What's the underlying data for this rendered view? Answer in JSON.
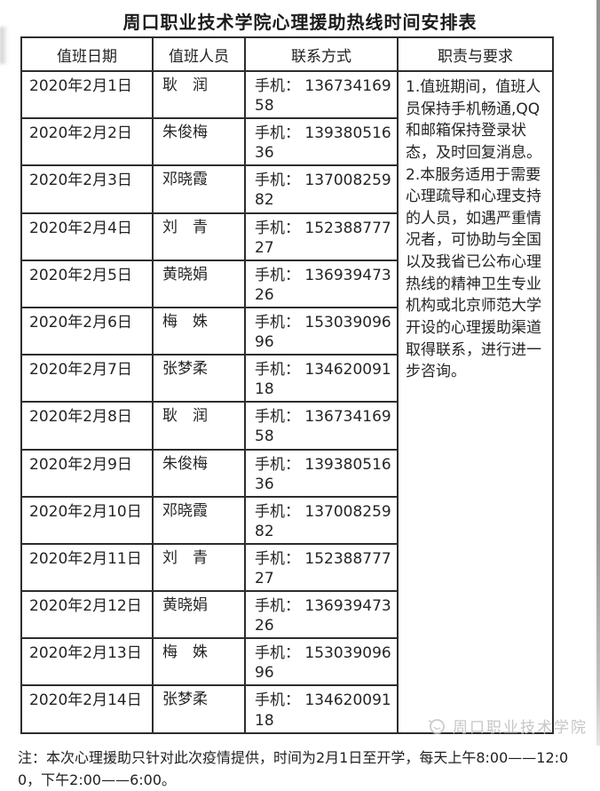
{
  "title": "周口职业技术学院心理援助热线时间安排表",
  "table": {
    "headers": [
      "值班日期",
      "值班人员",
      "联系方式",
      "职责与要求"
    ],
    "rows": [
      {
        "date": "2020年2月1日",
        "person": "耿　润",
        "phone": "手机： 13673416958"
      },
      {
        "date": "2020年2月2日",
        "person": "朱俊梅",
        "phone": "手机： 13938051636"
      },
      {
        "date": "2020年2月3日",
        "person": "邓晓霞",
        "phone": "手机： 13700825982"
      },
      {
        "date": "2020年2月4日",
        "person": "刘　青",
        "phone": "手机： 15238877727"
      },
      {
        "date": "2020年2月5日",
        "person": "黄晓娟",
        "phone": "手机： 13693947326"
      },
      {
        "date": "2020年2月6日",
        "person": "梅　姝",
        "phone": "手机： 15303909696"
      },
      {
        "date": "2020年2月7日",
        "person": "张梦柔",
        "phone": "手机： 13462009118"
      },
      {
        "date": "2020年2月8日",
        "person": "耿　润",
        "phone": "手机： 13673416958"
      },
      {
        "date": "2020年2月9日",
        "person": "朱俊梅",
        "phone": "手机： 13938051636"
      },
      {
        "date": "2020年2月10日",
        "person": "邓晓霞",
        "phone": "手机： 13700825982"
      },
      {
        "date": "2020年2月11日",
        "person": "刘　青",
        "phone": "手机： 15238877727"
      },
      {
        "date": "2020年2月12日",
        "person": "黄晓娟",
        "phone": "手机： 13693947326"
      },
      {
        "date": "2020年2月13日",
        "person": "梅　姝",
        "phone": "手机： 15303909696"
      },
      {
        "date": "2020年2月14日",
        "person": "张梦柔",
        "phone": "手机： 13462009118"
      }
    ],
    "notes": [
      "1.值班期间，值班人员保持手机畅通,QQ和邮箱保持登录状态，及时回复消息。",
      "2.本服务适用于需要心理疏导和心理支持的人员，如遇严重情况者，可协助与全国以及我省已公布心理热线的精神卫生专业机构或北京师范大学开设的心理援助渠道取得联系，进行进一步咨询。"
    ]
  },
  "footnote": "注：本次心理援助只针对此次疫情提供，时间为2月1日至开学，每天上午8:00——12:00，下午2:00——6:00。",
  "watermark": {
    "text": "周口职业技术学院",
    "icon": "school-logo-icon"
  },
  "colors": {
    "border": "#2d2d2d",
    "text": "#242424",
    "watermark": "#c6c6c6",
    "background": "#ffffff"
  }
}
